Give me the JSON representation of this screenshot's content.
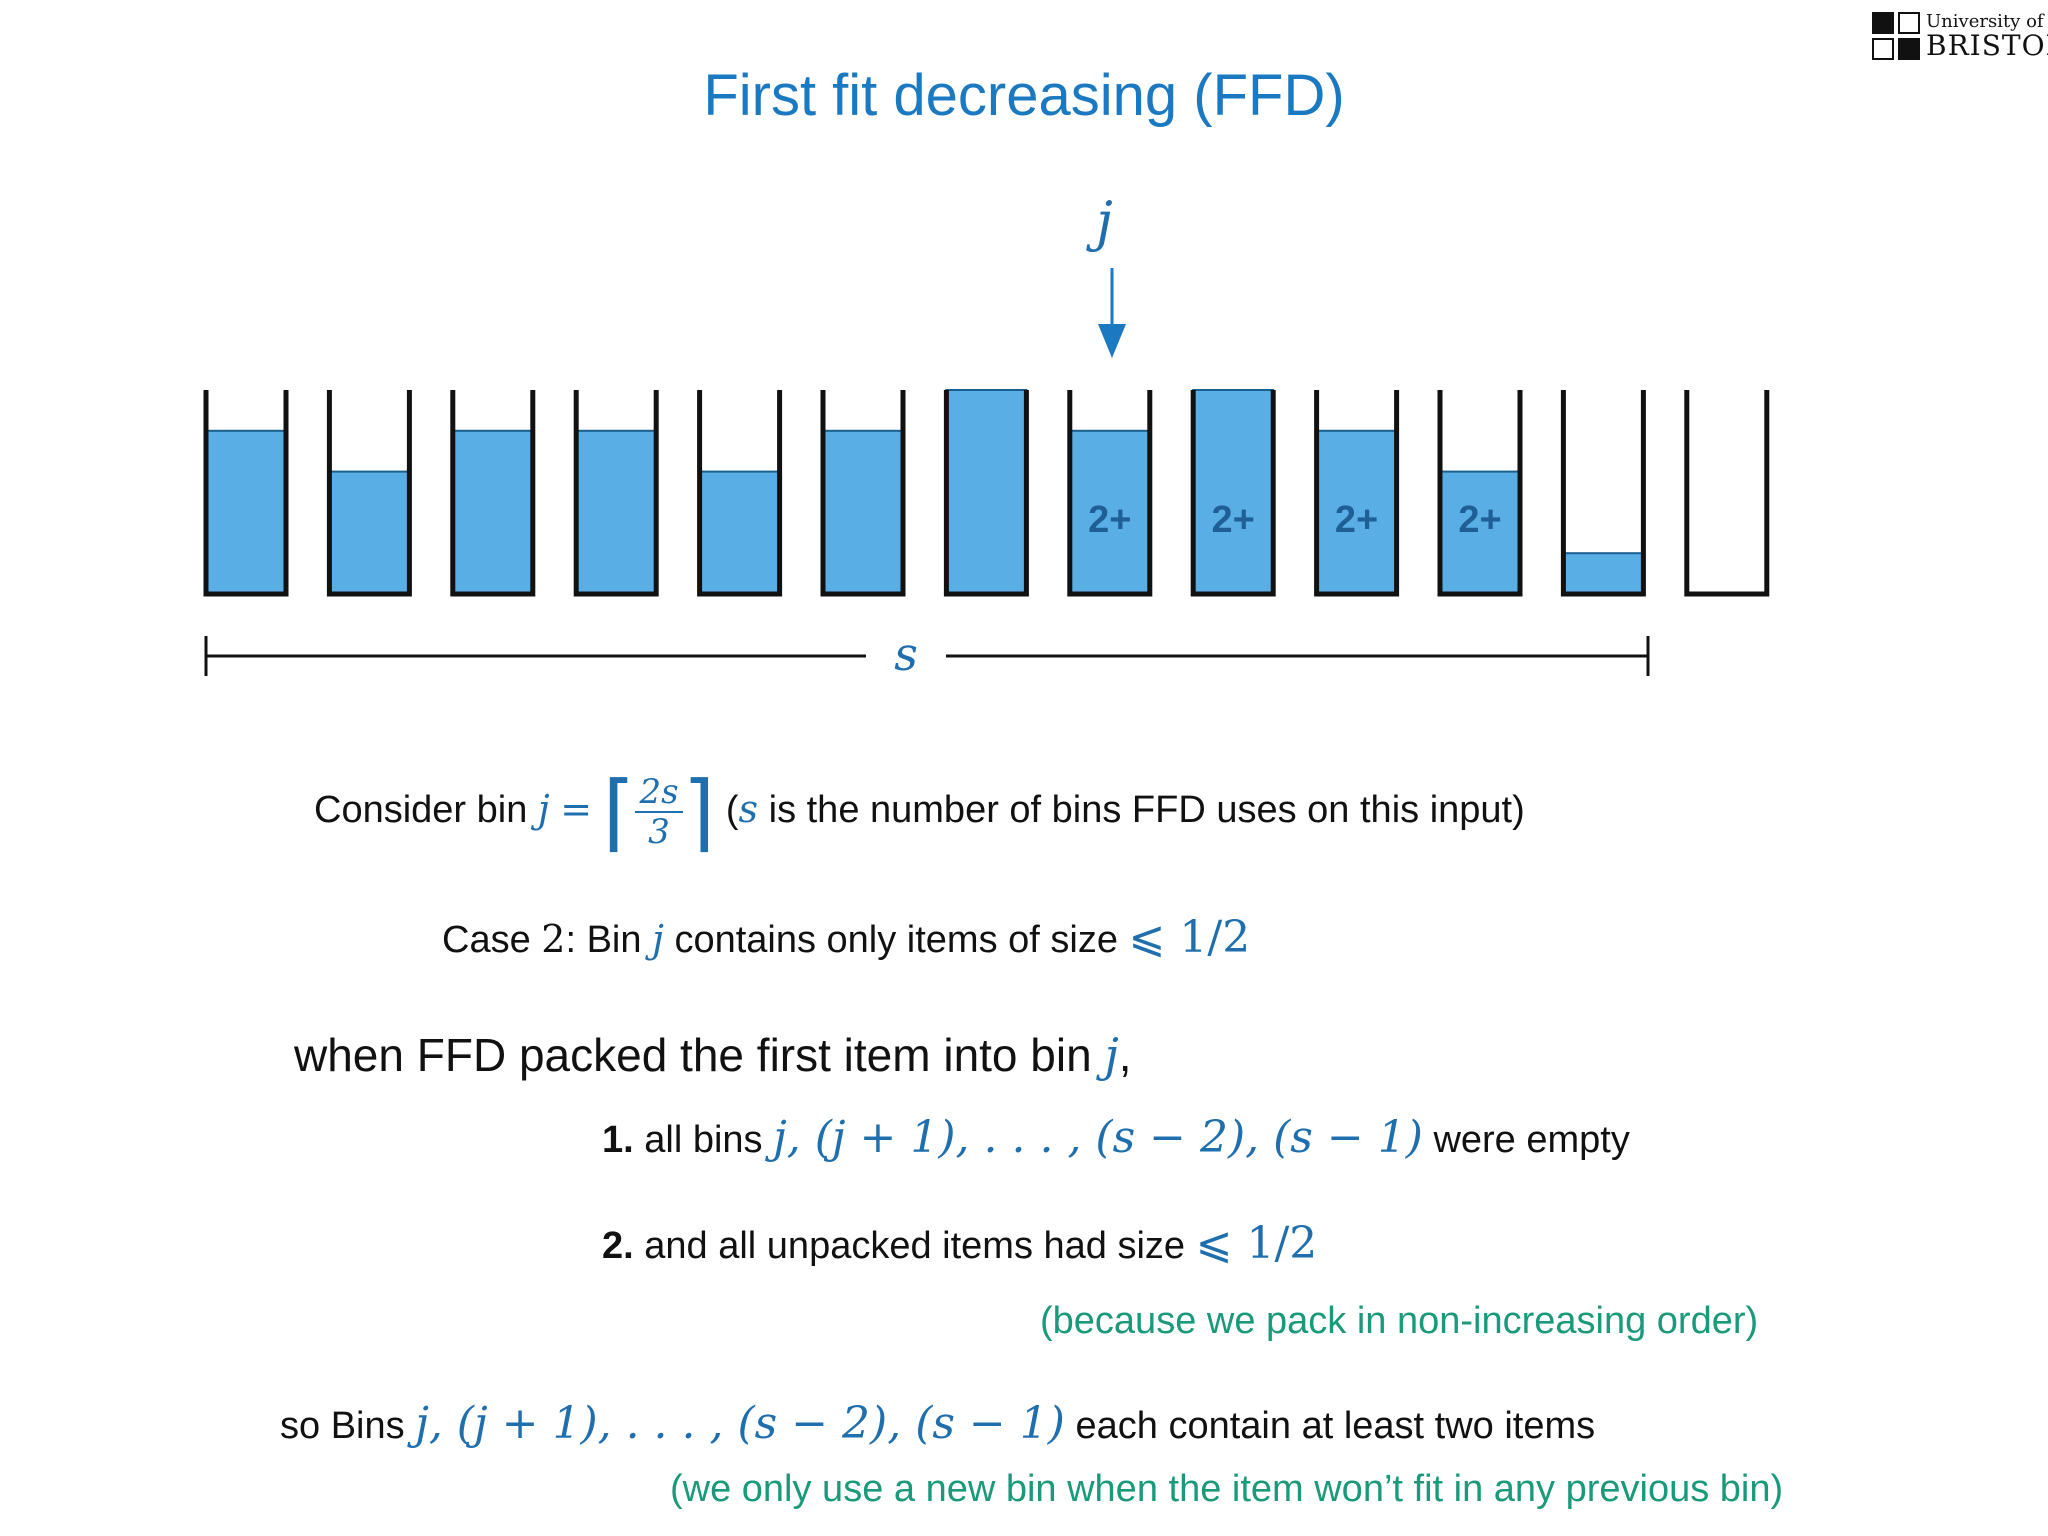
{
  "slide": {
    "title": "First fit decreasing (FFD)",
    "logo": {
      "line1": "University of",
      "line2": "BRISTOL"
    },
    "pointer_label": "j",
    "bin_label": "2+",
    "span_label": "s"
  },
  "bins": {
    "capacity": 1,
    "fill_fractions": [
      0.8,
      0.6,
      0.8,
      0.8,
      0.6,
      0.8,
      1.0,
      0.8,
      1.0,
      0.8,
      0.6,
      0.2,
      0.0
    ],
    "labelled_indices": [
      7,
      8,
      9,
      10
    ],
    "pointer_index": 7,
    "span_bins": 12
  },
  "text": {
    "consider_prefix": "Consider bin",
    "consider_j": "j",
    "consider_eq": "=",
    "frac_num": "2s",
    "frac_den": "3",
    "paren_open": "(",
    "paren_s": "s",
    "consider_suffix": "is the number of bins FFD uses on this input)",
    "case_prefix": "Case",
    "case_num": "2",
    "case_colon": ": Bin",
    "case_j": "j",
    "case_mid": "contains only items of size",
    "case_bound": "⩽ 1/2",
    "when_prefix": "when FFD packed the first item into bin",
    "when_j": "j",
    "when_comma": ",",
    "item1_num": "1.",
    "item1_prefix": "all bins",
    "item1_math": "j, (j + 1), . . . , (s − 2), (s − 1)",
    "item1_suffix": "were empty",
    "item2_num": "2.",
    "item2_prefix": "and all unpacked items had size",
    "item2_bound": "⩽ 1/2",
    "note1": "(because we pack in non-increasing order)",
    "so_prefix": "so Bins",
    "so_math": "j, (j + 1), . . . , (s − 2), (s − 1)",
    "so_suffix": "each contain at least two items",
    "note2": "(we only use a new bin when the item won’t fit in any previous bin)"
  },
  "colors": {
    "title": "#1a79c0",
    "bin_fill": "#5aaee6",
    "bin_outline": "#111111",
    "bin_label": "#1f5f96",
    "math": "#1f6fae",
    "note": "#1a9a7b"
  }
}
